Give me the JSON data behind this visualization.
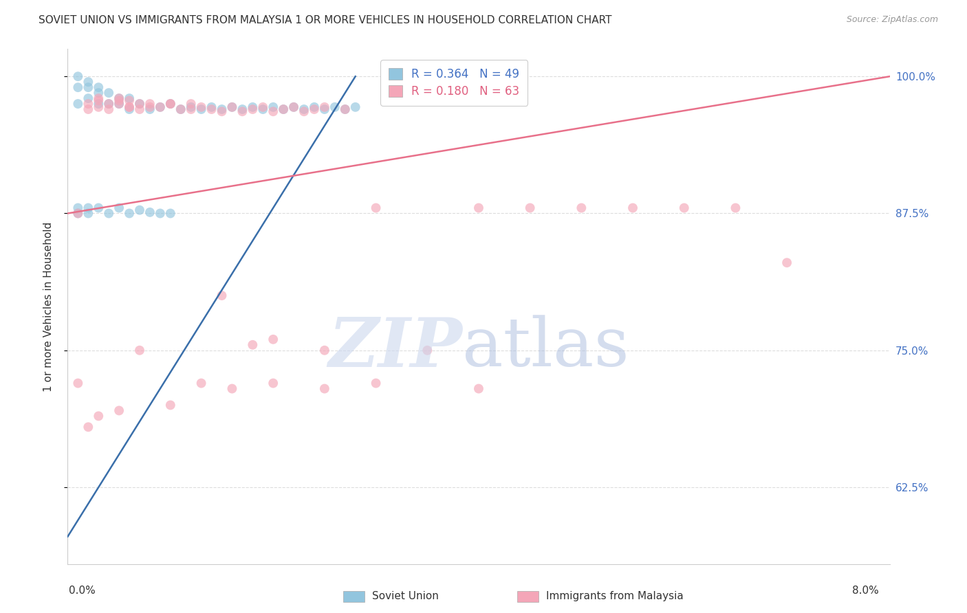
{
  "title": "SOVIET UNION VS IMMIGRANTS FROM MALAYSIA 1 OR MORE VEHICLES IN HOUSEHOLD CORRELATION CHART",
  "source": "Source: ZipAtlas.com",
  "ylabel": "1 or more Vehicles in Household",
  "legend1_label": "Soviet Union",
  "legend2_label": "Immigrants from Malaysia",
  "r1": 0.364,
  "n1": 49,
  "r2": 0.18,
  "n2": 63,
  "color_blue": "#92c5de",
  "color_pink": "#f4a6b8",
  "line_blue": "#3a6faa",
  "line_pink": "#e8708a",
  "xlim": [
    0,
    0.08
  ],
  "ylim": [
    0.555,
    1.025
  ],
  "ytick_positions": [
    0.625,
    0.75,
    0.875,
    1.0
  ],
  "ytick_labels": [
    "62.5%",
    "75.0%",
    "87.5%",
    "100.0%"
  ],
  "su_x": [
    0.001,
    0.001,
    0.001,
    0.002,
    0.002,
    0.002,
    0.003,
    0.003,
    0.003,
    0.004,
    0.004,
    0.005,
    0.005,
    0.006,
    0.006,
    0.007,
    0.008,
    0.009,
    0.01,
    0.011,
    0.012,
    0.013,
    0.014,
    0.015,
    0.016,
    0.017,
    0.018,
    0.019,
    0.02,
    0.021,
    0.022,
    0.023,
    0.024,
    0.025,
    0.026,
    0.027,
    0.028,
    0.001,
    0.001,
    0.002,
    0.002,
    0.003,
    0.004,
    0.005,
    0.006,
    0.007,
    0.008,
    0.009,
    0.01
  ],
  "su_y": [
    0.975,
    0.99,
    1.0,
    0.98,
    0.99,
    0.995,
    0.975,
    0.985,
    0.99,
    0.975,
    0.985,
    0.975,
    0.98,
    0.97,
    0.98,
    0.975,
    0.97,
    0.972,
    0.975,
    0.97,
    0.972,
    0.97,
    0.972,
    0.97,
    0.972,
    0.97,
    0.972,
    0.97,
    0.972,
    0.97,
    0.972,
    0.97,
    0.972,
    0.97,
    0.972,
    0.97,
    0.972,
    0.88,
    0.875,
    0.88,
    0.875,
    0.88,
    0.875,
    0.88,
    0.875,
    0.878,
    0.876,
    0.875,
    0.875
  ],
  "ma_x": [
    0.001,
    0.002,
    0.002,
    0.003,
    0.003,
    0.004,
    0.005,
    0.005,
    0.006,
    0.006,
    0.007,
    0.008,
    0.009,
    0.01,
    0.011,
    0.012,
    0.013,
    0.014,
    0.015,
    0.016,
    0.017,
    0.018,
    0.019,
    0.02,
    0.021,
    0.022,
    0.023,
    0.024,
    0.025,
    0.027,
    0.003,
    0.004,
    0.005,
    0.006,
    0.007,
    0.008,
    0.01,
    0.012,
    0.015,
    0.018,
    0.02,
    0.025,
    0.03,
    0.035,
    0.04,
    0.045,
    0.05,
    0.055,
    0.06,
    0.065,
    0.07,
    0.001,
    0.002,
    0.003,
    0.005,
    0.007,
    0.01,
    0.013,
    0.016,
    0.02,
    0.025,
    0.03,
    0.04
  ],
  "ma_y": [
    0.875,
    0.97,
    0.975,
    0.972,
    0.978,
    0.97,
    0.975,
    0.98,
    0.972,
    0.978,
    0.97,
    0.975,
    0.972,
    0.975,
    0.97,
    0.975,
    0.972,
    0.97,
    0.968,
    0.972,
    0.968,
    0.97,
    0.972,
    0.968,
    0.97,
    0.972,
    0.968,
    0.97,
    0.972,
    0.97,
    0.98,
    0.975,
    0.978,
    0.972,
    0.975,
    0.972,
    0.975,
    0.97,
    0.8,
    0.755,
    0.76,
    0.75,
    0.88,
    0.75,
    0.88,
    0.88,
    0.88,
    0.88,
    0.88,
    0.88,
    0.83,
    0.72,
    0.68,
    0.69,
    0.695,
    0.75,
    0.7,
    0.72,
    0.715,
    0.72,
    0.715,
    0.72,
    0.715
  ],
  "su_line_x": [
    0.0,
    0.028
  ],
  "ma_line_x": [
    0.0,
    0.08
  ],
  "grid_color": "#dddddd",
  "spine_color": "#cccccc",
  "tick_color": "#4472c4",
  "text_color": "#333333",
  "source_color": "#999999",
  "title_fontsize": 11,
  "source_fontsize": 9,
  "tick_fontsize": 11,
  "ylabel_fontsize": 11,
  "legend_fontsize": 12,
  "marker_size": 100,
  "marker_alpha": 0.65,
  "line_width": 1.8
}
